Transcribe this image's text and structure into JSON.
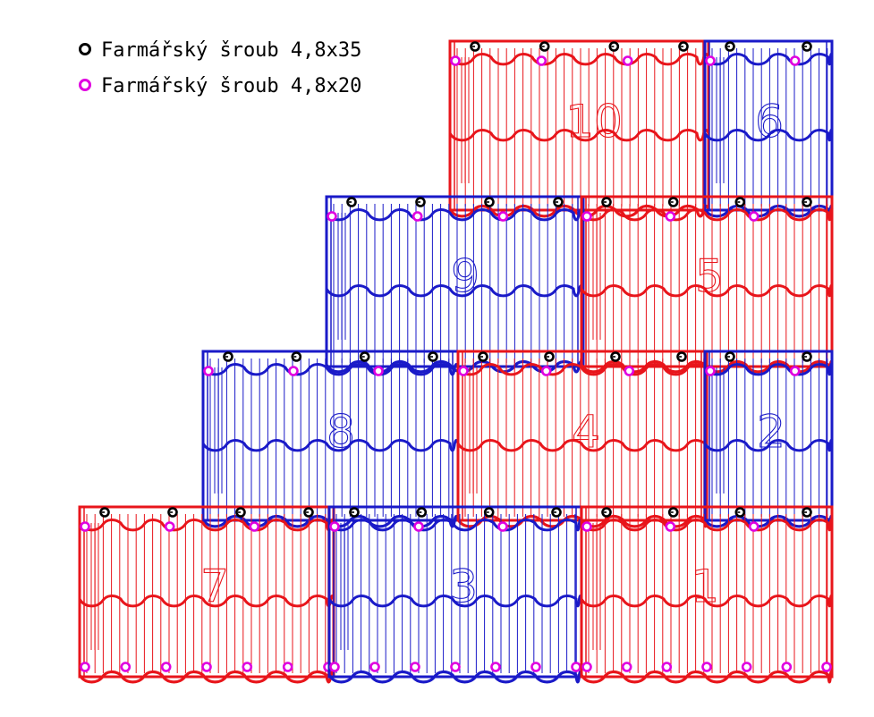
{
  "legend": {
    "items": [
      {
        "label": "Farmářský šroub 4,8x35",
        "color": "#000000"
      },
      {
        "label": "Farmářský šroub 4,8x20",
        "color": "#e000e0"
      }
    ]
  },
  "colors": {
    "red": "#e8151b",
    "blue": "#1a1ac8",
    "screw_long": "#000000",
    "screw_short": "#e000e0"
  },
  "sheets": [
    {
      "number": "1",
      "color": "red"
    },
    {
      "number": "2",
      "color": "blue"
    },
    {
      "number": "3",
      "color": "blue"
    },
    {
      "number": "4",
      "color": "red"
    },
    {
      "number": "5",
      "color": "red"
    },
    {
      "number": "6",
      "color": "blue"
    },
    {
      "number": "7",
      "color": "red"
    },
    {
      "number": "8",
      "color": "blue"
    },
    {
      "number": "9",
      "color": "blue"
    },
    {
      "number": "10",
      "color": "red"
    }
  ]
}
